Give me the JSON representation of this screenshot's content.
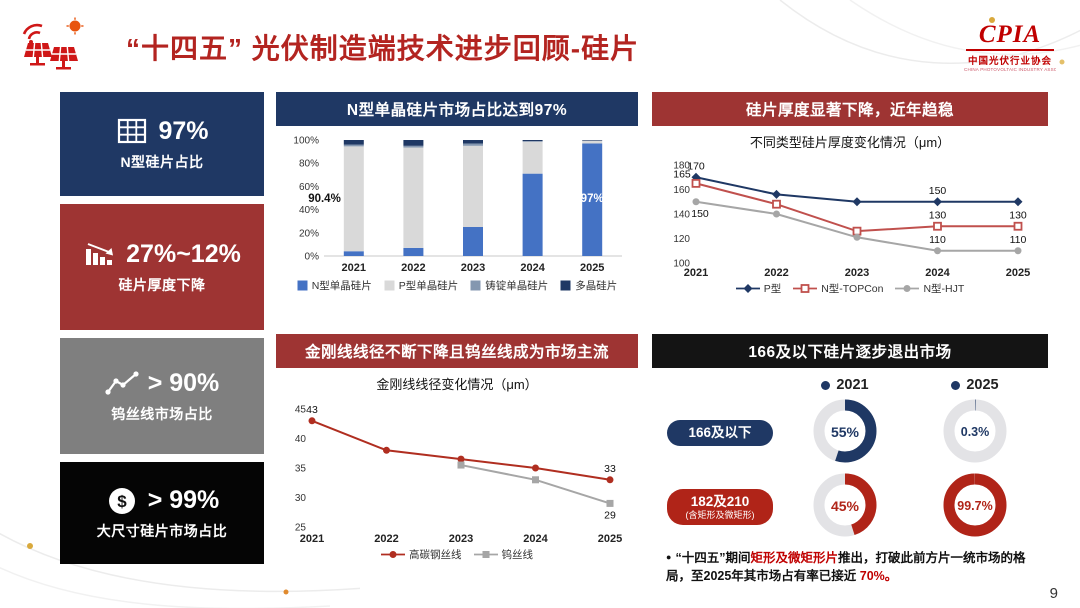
{
  "header": {
    "title": "“十四五” 光伏制造端技术进步回顾-硅片",
    "logo_brand": "CPIA",
    "logo_org": "中国光伏行业协会",
    "logo_sub": "CHINA PHOTOVOLTAIC INDUSTRY ASSOCIATION"
  },
  "page_number": "9",
  "colors": {
    "navy": "#1f3864",
    "brick_red": "#9e3433",
    "accent_red": "#c00000",
    "line_red": "#b02e20",
    "gray": "#7f7f7f",
    "black": "#141414",
    "bar_blue": "#4472c4",
    "bar_gray": "#d9d9d9"
  },
  "sidebar": {
    "cards": [
      {
        "icon": "grid-icon",
        "value": "97%",
        "label": "N型硅片占比",
        "bg": "#1f3864"
      },
      {
        "icon": "decline-chart-icon",
        "value": "27%~12%",
        "label": "硅片厚度下降",
        "bg": "#9e3433"
      },
      {
        "icon": "trend-chart-icon",
        "value": "> 90%",
        "label": "钨丝线市场占比",
        "bg": "#7f7f7f"
      },
      {
        "icon": "dollar-icon",
        "value": "> 99%",
        "label": "大尺寸硅片市场占比",
        "bg": "#050505"
      }
    ]
  },
  "panels": {
    "n_share": {
      "title": "N型单晶硅片市场占比达到97%"
    },
    "thickness": {
      "title": "硅片厚度显著下降，近年趋稳"
    },
    "wire": {
      "title": "金刚线线径不断下降且钨丝线成为市场主流"
    },
    "exit": {
      "title": "166及以下硅片逐步退出市场"
    }
  },
  "chart_data": [
    {
      "id": "n_share",
      "type": "bar",
      "stacked": true,
      "title": "N型单晶硅片市场占比达到97%",
      "categories": [
        "2021",
        "2022",
        "2023",
        "2024",
        "2025"
      ],
      "series": [
        {
          "name": "N型单晶硅片",
          "color": "#4472c4",
          "values": [
            4.1,
            7,
            25,
            71,
            97
          ]
        },
        {
          "name": "P型单晶硅片",
          "color": "#d9d9d9",
          "values": [
            90.4,
            86.5,
            70,
            27.5,
            2.5
          ]
        },
        {
          "name": "铸锭单晶硅片",
          "color": "#8497b0",
          "values": [
            1.5,
            1.5,
            2,
            0.5,
            0
          ]
        },
        {
          "name": "多晶硅片",
          "color": "#1f3864",
          "values": [
            4,
            5,
            3,
            1,
            0.5
          ]
        }
      ],
      "ylim": [
        0,
        100
      ],
      "yticks": [
        "0%",
        "20%",
        "40%",
        "60%",
        "80%",
        "100%"
      ],
      "annotations": [
        {
          "text": "90.4%",
          "cat": 0,
          "y": 50,
          "color": "#111111"
        },
        {
          "text": "97%",
          "cat": 4,
          "y": 50,
          "color": "#ffffff"
        }
      ],
      "legend_position": "bottom"
    },
    {
      "id": "thickness",
      "type": "line",
      "title": "不同类型硅片厚度变化情况（μm）",
      "categories": [
        "2021",
        "2022",
        "2023",
        "2024",
        "2025"
      ],
      "ylim": [
        100,
        180
      ],
      "yticks": [
        100,
        120,
        140,
        160,
        180
      ],
      "series": [
        {
          "name": "P型",
          "color": "#1f3864",
          "marker": "diamond",
          "values": [
            170,
            156,
            150,
            150,
            150
          ],
          "labels": [
            {
              "i": 0,
              "text": "170",
              "dy": -8
            },
            {
              "i": 3,
              "text": "150",
              "dy": -8
            }
          ]
        },
        {
          "name": "N型-TOPCon",
          "color": "#c0504d",
          "marker": "square-open",
          "values": [
            165,
            148,
            126,
            130,
            130
          ],
          "labels": [
            {
              "i": 0,
              "text": "165",
              "dx": -14,
              "dy": -6
            },
            {
              "i": 3,
              "text": "130",
              "dy": -8
            },
            {
              "i": 4,
              "text": "130",
              "dy": -8
            }
          ]
        },
        {
          "name": "N型-HJT",
          "color": "#a6a6a6",
          "marker": "circle",
          "values": [
            150,
            140,
            121,
            110,
            110
          ],
          "labels": [
            {
              "i": 0,
              "text": "150",
              "dx": 4,
              "dy": 15
            },
            {
              "i": 3,
              "text": "110",
              "dy": -8
            },
            {
              "i": 4,
              "text": "110",
              "dy": -8
            }
          ]
        }
      ],
      "legend_position": "bottom"
    },
    {
      "id": "wire",
      "type": "line",
      "title": "金刚线线径变化情况（μm）",
      "categories": [
        "2021",
        "2022",
        "2023",
        "2024",
        "2025"
      ],
      "ylim": [
        25,
        45
      ],
      "yticks": [
        25,
        30,
        35,
        40,
        45
      ],
      "series": [
        {
          "name": "高碳钢丝线",
          "color": "#b02e20",
          "marker": "circle",
          "values": [
            43,
            38,
            36.5,
            35,
            33
          ],
          "labels": [
            {
              "i": 0,
              "text": "43",
              "dy": -8
            },
            {
              "i": 4,
              "text": "33",
              "dy": -8
            }
          ]
        },
        {
          "name": "钨丝线",
          "color": "#a6a6a6",
          "marker": "square",
          "values": [
            null,
            null,
            35.5,
            33,
            29
          ],
          "labels": [
            {
              "i": 4,
              "text": "29",
              "dy": 15
            }
          ]
        }
      ],
      "legend_position": "bottom"
    },
    {
      "id": "exit",
      "type": "pie",
      "title": "166及以下硅片逐步退出市场",
      "columns": [
        "2021",
        "2025"
      ],
      "rows": [
        {
          "label": "166及以下",
          "sublabel": "",
          "color": "#1f3864",
          "values_pct": [
            55,
            0.3
          ],
          "values": [
            "55%",
            "0.3%"
          ]
        },
        {
          "label": "182及210",
          "sublabel": "(含矩形及微矩形)",
          "color": "#b02418",
          "values_pct": [
            45,
            99.7
          ],
          "values": [
            "45%",
            "99.7%"
          ]
        }
      ],
      "note_segments": [
        {
          "text": "“十四五”期间",
          "red": false
        },
        {
          "text": "矩形及微矩形片",
          "red": true
        },
        {
          "text": "推出，打破此前方片一统市场的格局，至2025年其市场占有率已接近 ",
          "red": false
        },
        {
          "text": "70%。",
          "red": true
        }
      ]
    }
  ]
}
